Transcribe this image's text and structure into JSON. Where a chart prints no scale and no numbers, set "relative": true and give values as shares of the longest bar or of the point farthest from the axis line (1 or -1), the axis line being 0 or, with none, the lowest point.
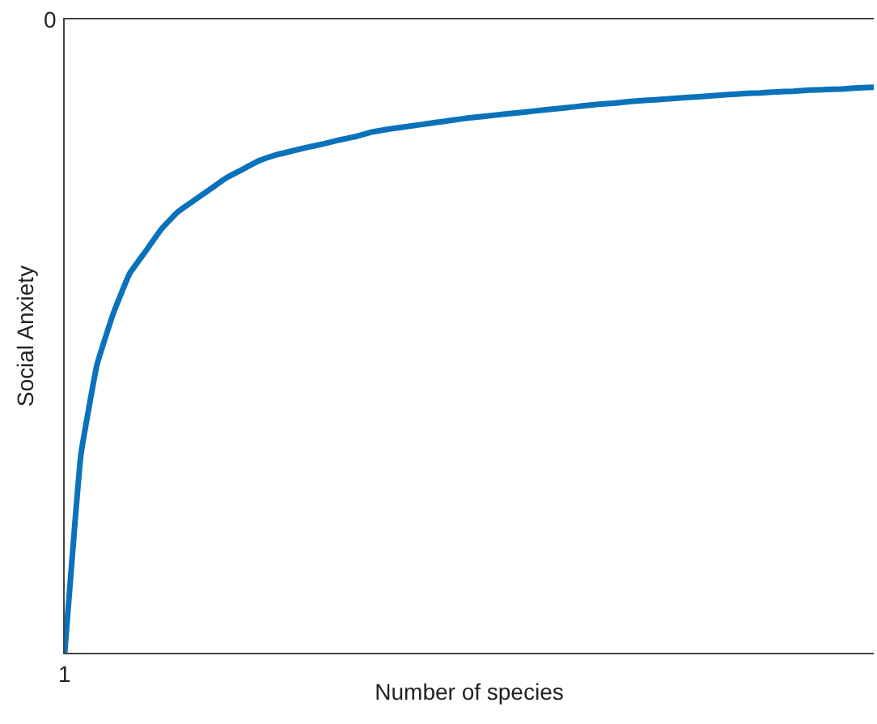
{
  "chart_data": {
    "type": "line",
    "xlabel": "Number of species",
    "ylabel": "Social Anxiety",
    "relative": true,
    "marker": "none",
    "line_style": "solid",
    "annotations": [
      "0",
      "1"
    ],
    "categories": [
      null,
      null,
      null,
      null,
      null,
      null,
      null,
      null,
      null,
      null,
      null,
      null,
      null,
      null,
      null,
      null,
      null,
      null,
      null,
      null,
      null,
      null,
      null,
      null,
      null,
      null,
      null,
      null,
      null,
      null,
      null,
      null,
      null,
      null,
      null,
      null,
      null,
      null,
      null,
      null,
      null,
      null,
      null,
      null,
      null,
      null,
      null,
      null,
      null,
      null,
      null
    ],
    "series": [
      {
        "color": "#0a72ba",
        "values": [
          0,
          0.35,
          0.51,
          0.6,
          0.67,
          0.71,
          0.75,
          0.78,
          0.8,
          0.82,
          0.84,
          0.855,
          0.87,
          0.88,
          0.887,
          0.894,
          0.9,
          0.907,
          0.913,
          0.921,
          0.926,
          0.93,
          0.934,
          0.938,
          0.942,
          0.946,
          0.949,
          0.952,
          0.955,
          0.958,
          0.961,
          0.964,
          0.967,
          0.97,
          0.972,
          0.975,
          0.977,
          0.979,
          0.981,
          0.983,
          0.985,
          0.987,
          0.989,
          0.99,
          0.992,
          0.993,
          0.995,
          0.996,
          0.997,
          0.999,
          1
        ]
      }
    ]
  }
}
